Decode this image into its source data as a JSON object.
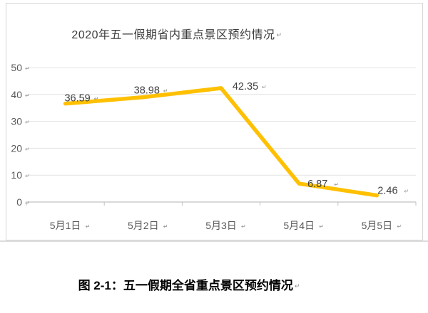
{
  "chart": {
    "title": "2020年五一假期省内重点景区预约情况"
  },
  "caption": {
    "text": "图 2-1：五一假期全省重点景区预约情况"
  },
  "marks": {
    "return_mark": "↵"
  },
  "chart_data": {
    "type": "line",
    "title": "2020年五一假期省内重点景区预约情况",
    "categories": [
      "5月1日",
      "5月2日",
      "5月3日",
      "5月4日",
      "5月5日"
    ],
    "values": [
      36.59,
      38.98,
      42.35,
      6.87,
      2.46
    ],
    "point_labels": [
      "36.59",
      "38.98",
      "42.35",
      "6.87",
      "2.46"
    ],
    "xlabel": "",
    "ylabel": "",
    "ylim": [
      0,
      50
    ],
    "yticks": [
      0,
      10,
      20,
      30,
      40,
      50
    ],
    "grid": true,
    "legend": "none",
    "line_color": "#FFC000"
  },
  "colors": {
    "line": "#FFC000",
    "gridline": "#e4e4e4",
    "axis": "#c2c2c2",
    "tick_text": "#5a5a5a",
    "data_label": "#3f3f3f",
    "title_text": "#3d3d3d",
    "caption_text": "#000000",
    "frame_border": "#d6d6d6",
    "mark": "#8f8f8f"
  }
}
